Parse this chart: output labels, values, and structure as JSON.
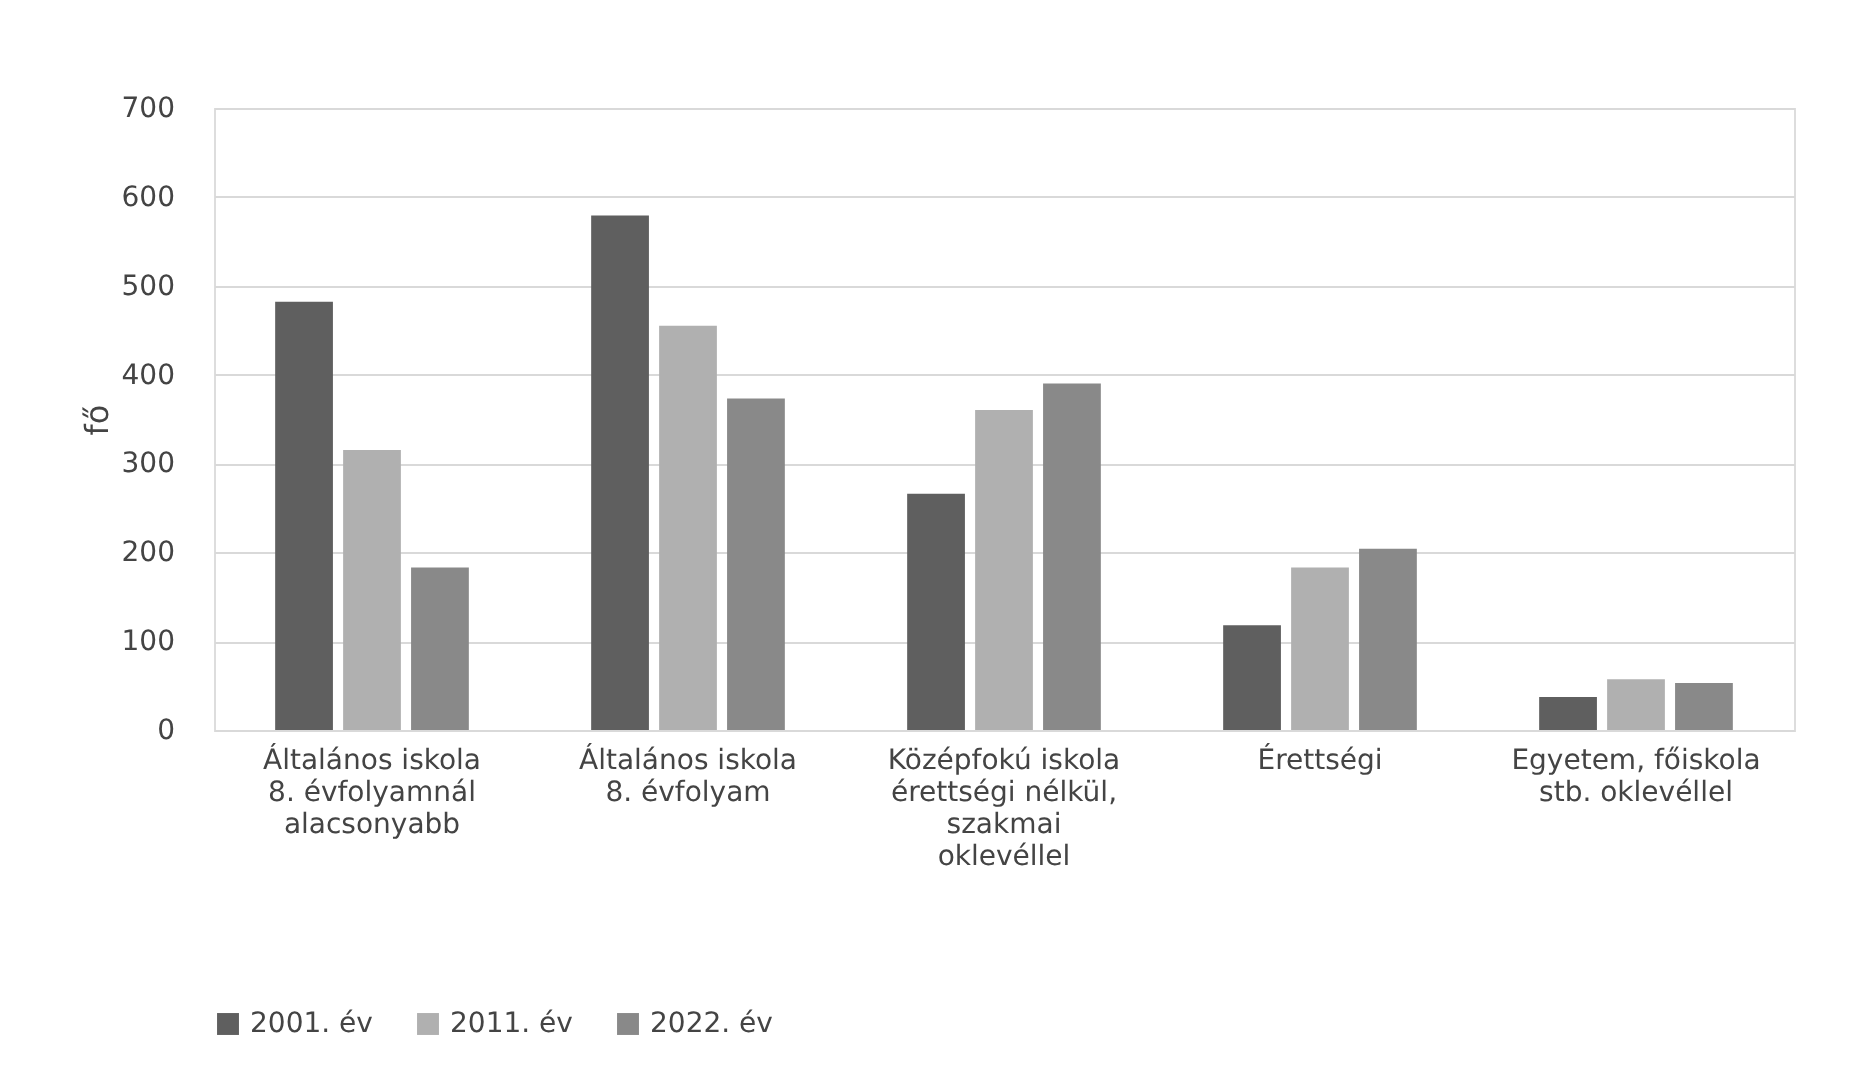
{
  "chart_data": {
    "type": "bar",
    "ylabel": "fő",
    "categories": [
      "Általános iskola\n8. évfolyamnál\nalacsonyabb",
      "Általános iskola\n8. évfolyam",
      "Középfokú iskola\nérettségi nélkül,\nszakmai\noklevéllel",
      "Érettségi",
      "Egyetem, főiskola\nstb. oklevéllel"
    ],
    "series": [
      {
        "name": "2001. év",
        "color": "#5f5f5f",
        "values": [
          482,
          579,
          266,
          118,
          37
        ]
      },
      {
        "name": "2011. év",
        "color": "#b0b0b0",
        "values": [
          315,
          455,
          360,
          183,
          57
        ]
      },
      {
        "name": "2022. év",
        "color": "#898989",
        "values": [
          183,
          373,
          390,
          204,
          53
        ]
      }
    ],
    "ylim": [
      0,
      700
    ],
    "yticks": [
      0,
      100,
      200,
      300,
      400,
      500,
      600,
      700
    ],
    "grid": "y",
    "legend": "bottom"
  }
}
